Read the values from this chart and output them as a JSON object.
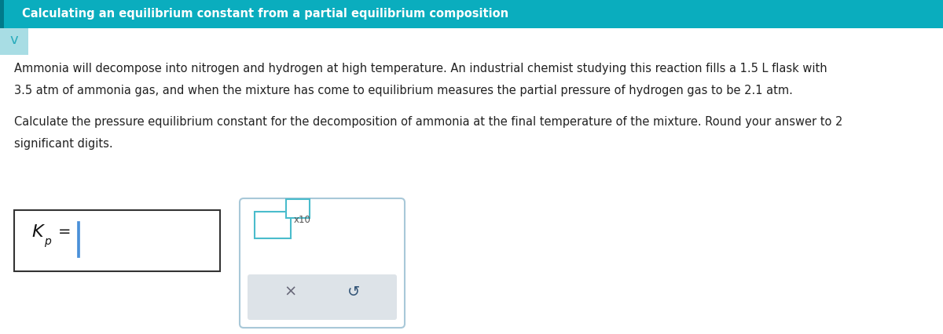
{
  "title_text": "Calculating an equilibrium constant from a partial equilibrium composition",
  "title_bg_color": "#0AADBE",
  "title_text_color": "#FFFFFF",
  "title_font_size": 10.5,
  "body_bg_color": "#FFFFFF",
  "body_text_color": "#222222",
  "para1_line1": "Ammonia will decompose into nitrogen and hydrogen at high temperature. An industrial chemist studying this reaction fills a 1.5 L flask with",
  "para1_line2": "3.5 atm of ammonia gas, and when the mixture has come to equilibrium measures the partial pressure of hydrogen gas to be 2.1 atm.",
  "para2_line1": "Calculate the pressure equilibrium constant for the decomposition of ammonia at the final temperature of the mixture. Round your answer to 2",
  "para2_line2": "significant digits.",
  "input_box_border": "#333333",
  "input_cursor_color": "#4A90D9",
  "panel_bg": "#FFFFFF",
  "panel_border": "#A8C8D8",
  "small_box_color": "#4ABCCC",
  "x10_label": "x10",
  "button_bg": "#DDE3E8",
  "button_x": "×",
  "button_undo": "↺",
  "chevron_color": "#2AACBC",
  "accent_color": "#0AADBE",
  "darker_accent": "#007A8A",
  "chevron_bg": "#A8DDE4"
}
